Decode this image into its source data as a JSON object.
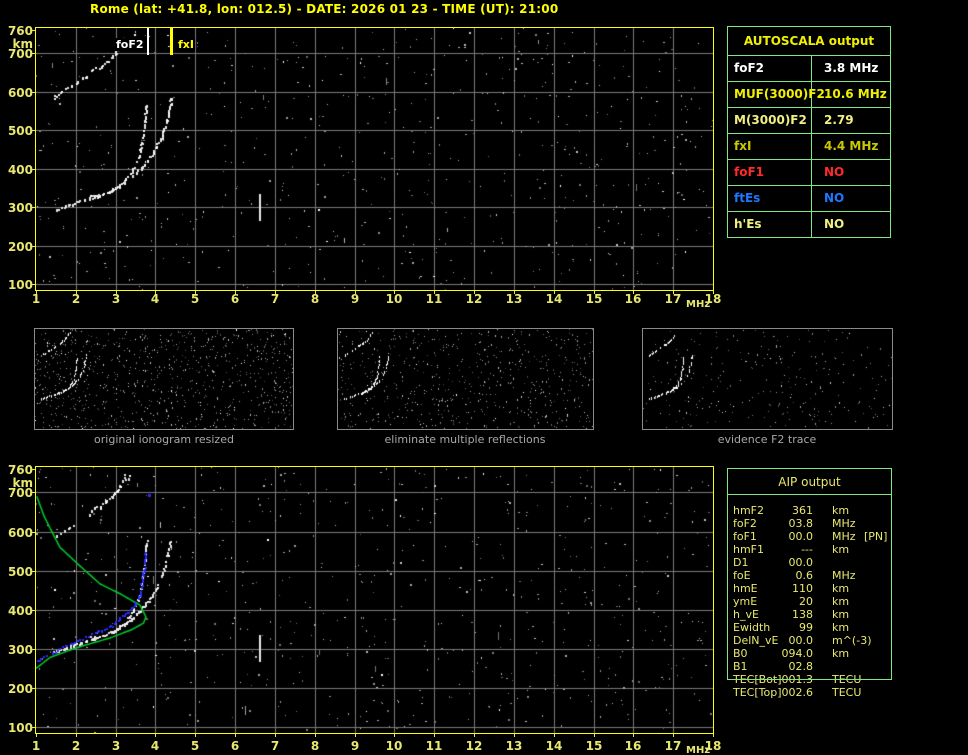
{
  "title": "Rome (lat: +41.8, lon: 012.5) - DATE: 2026 01 23 - TIME (UT): 21:00",
  "colors": {
    "background": "#000000",
    "title": "#FFFF00",
    "axis_border": "#FFFF00",
    "axis_labels": "#E8E870",
    "grid": "#7B7B7B",
    "trace": "#FFFFFF",
    "profile_green": "#00CC2C",
    "scaled_trace_blue": "#2B2BFF",
    "table_border_green": "#80E880",
    "panel_border": "#8A8A8A",
    "panel_label": "#A8A8A8"
  },
  "ionogram": {
    "x_unit": "MHz",
    "y_unit": "km",
    "xticks": [
      1,
      2,
      3,
      4,
      5,
      6,
      7,
      8,
      9,
      10,
      11,
      12,
      13,
      14,
      15,
      16,
      17,
      18
    ],
    "yticks": [
      760,
      700,
      600,
      500,
      400,
      300,
      200,
      100
    ],
    "xlim": [
      1,
      18
    ],
    "ylim": [
      85,
      765
    ],
    "markers": [
      {
        "name": "foF2",
        "label": "foF2",
        "freq": 3.8,
        "color": "#FFFFFF",
        "label_side": "left"
      },
      {
        "name": "fxI",
        "label": "fxI",
        "freq": 4.4,
        "color": "#FFFF00",
        "label_side": "right"
      }
    ],
    "traces": {
      "o_mode": [
        [
          1.45,
          292
        ],
        [
          1.8,
          305
        ],
        [
          2.2,
          318
        ],
        [
          2.6,
          330
        ],
        [
          3.0,
          350
        ],
        [
          3.25,
          372
        ],
        [
          3.45,
          400
        ],
        [
          3.6,
          438
        ],
        [
          3.68,
          480
        ],
        [
          3.73,
          520
        ],
        [
          3.76,
          552
        ],
        [
          3.78,
          575
        ]
      ],
      "x_mode": [
        [
          2.38,
          328
        ],
        [
          2.65,
          333
        ],
        [
          3.0,
          348
        ],
        [
          3.35,
          372
        ],
        [
          3.65,
          402
        ],
        [
          3.9,
          432
        ],
        [
          4.1,
          470
        ],
        [
          4.25,
          515
        ],
        [
          4.33,
          550
        ],
        [
          4.4,
          585
        ]
      ]
    }
  },
  "autoscala": {
    "title": "AUTOSCALA output",
    "rows": [
      {
        "label": "foF2",
        "value": "3.8 MHz",
        "color": "#FFFFFF"
      },
      {
        "label": "MUF(3000)F2",
        "value": "10.6 MHz",
        "color": "#F0F000"
      },
      {
        "label": "M(3000)F2",
        "value": "2.79",
        "color": "#F0F080"
      },
      {
        "label": "fxI",
        "value": "4.4 MHz",
        "color": "#C9C900"
      },
      {
        "label": "foF1",
        "value": "NO",
        "color": "#FF2A2A"
      },
      {
        "label": "ftEs",
        "value": "NO",
        "color": "#1E78FF"
      },
      {
        "label": "h'Es",
        "value": "NO",
        "color": "#F0F080"
      }
    ]
  },
  "panels": [
    {
      "label": "original ionogram resized",
      "noise": 850
    },
    {
      "label": "eliminate multiple reflections",
      "noise": 600
    },
    {
      "label": "evidence F2 trace",
      "noise": 270
    }
  ],
  "profile_plot": {
    "green_profile": [
      [
        1.02,
        690
      ],
      [
        1.2,
        640
      ],
      [
        1.35,
        609
      ],
      [
        1.6,
        560
      ],
      [
        2.06,
        516
      ],
      [
        2.61,
        466
      ],
      [
        3.11,
        441
      ],
      [
        3.61,
        412
      ],
      [
        3.76,
        382
      ],
      [
        3.7,
        366
      ],
      [
        3.4,
        349
      ],
      [
        2.86,
        328
      ],
      [
        2.02,
        303
      ],
      [
        1.35,
        278
      ],
      [
        1.0,
        250
      ]
    ],
    "blue_trace": [
      [
        1.03,
        270
      ],
      [
        1.6,
        299
      ],
      [
        2.36,
        336
      ],
      [
        2.86,
        357
      ],
      [
        3.36,
        399
      ],
      [
        3.61,
        437
      ],
      [
        3.71,
        500
      ],
      [
        3.76,
        548
      ]
    ],
    "blue_dot": [
      3.82,
      697
    ]
  },
  "aip": {
    "title": "AIP output",
    "rows": [
      {
        "label": "hmF2",
        "value": "361",
        "unit": "km",
        "extra": ""
      },
      {
        "label": "foF2",
        "value": "03.8",
        "unit": "MHz",
        "extra": ""
      },
      {
        "label": "foF1",
        "value": "00.0",
        "unit": "MHz",
        "extra": "[PN]"
      },
      {
        "label": "hmF1",
        "value": "---",
        "unit": "km",
        "extra": ""
      },
      {
        "label": "D1",
        "value": "00.0",
        "unit": "",
        "extra": ""
      },
      {
        "label": "foE",
        "value": "0.6",
        "unit": "MHz",
        "extra": ""
      },
      {
        "label": "hmE",
        "value": "110",
        "unit": "km",
        "extra": ""
      },
      {
        "label": "ymE",
        "value": "20",
        "unit": "km",
        "extra": ""
      },
      {
        "label": "h_vE",
        "value": "138",
        "unit": "km",
        "extra": ""
      },
      {
        "label": "Ewidth",
        "value": "99",
        "unit": "km",
        "extra": ""
      },
      {
        "label": "DelN_vE",
        "value": "00.0",
        "unit": "m^(-3)",
        "extra": ""
      },
      {
        "label": "B0",
        "value": "094.0",
        "unit": "km",
        "extra": ""
      },
      {
        "label": "B1",
        "value": "02.8",
        "unit": "",
        "extra": ""
      },
      {
        "label": "TEC[Bot]",
        "value": "001.3",
        "unit": "TECU",
        "extra": ""
      },
      {
        "label": "TEC[Top]",
        "value": "002.6",
        "unit": "TECU",
        "extra": ""
      }
    ]
  }
}
